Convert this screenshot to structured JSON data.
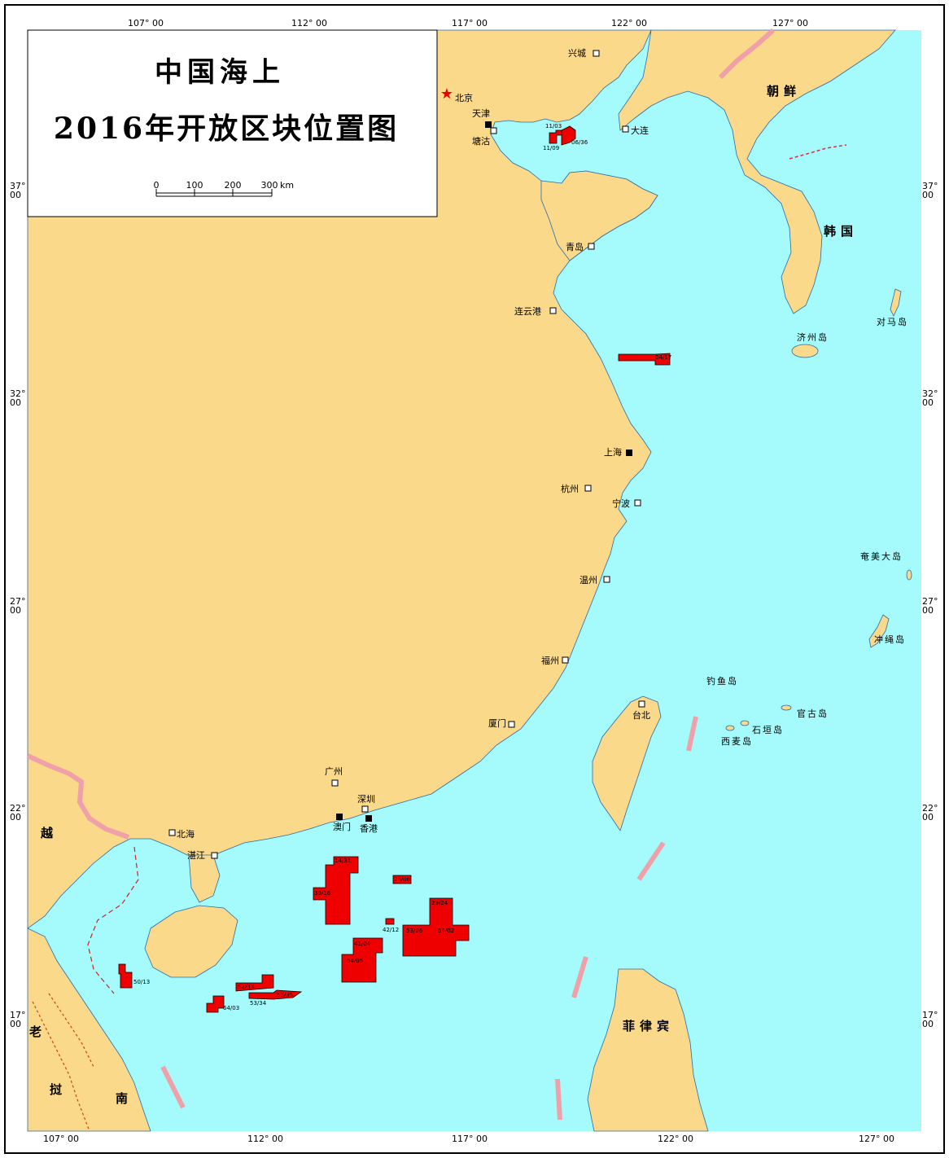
{
  "title": {
    "line1": "中国海上",
    "line2": "2016年开放区块位置图"
  },
  "scale_bar": {
    "ticks": [
      "0",
      "100",
      "200",
      "300"
    ],
    "unit": "km"
  },
  "longitude_labels_top": [
    "107° 00",
    "112° 00",
    "117° 00",
    "122° 00",
    "127° 00"
  ],
  "longitude_labels_bottom": [
    "107° 00",
    "112° 00",
    "117° 00",
    "122° 00",
    "127° 00"
  ],
  "latitude_labels": [
    {
      "deg": "37°",
      "min": "00"
    },
    {
      "deg": "32°",
      "min": "00"
    },
    {
      "deg": "27°",
      "min": "00"
    },
    {
      "deg": "22°",
      "min": "00"
    },
    {
      "deg": "17°",
      "min": "00"
    }
  ],
  "capital": "北京",
  "cities": [
    "天津",
    "塘沽",
    "兴城",
    "大连",
    "青岛",
    "连云港",
    "上海",
    "杭州",
    "宁波",
    "温州",
    "福州",
    "厦门",
    "台北",
    "广州",
    "深圳",
    "澳门",
    "香港",
    "北海",
    "湛江"
  ],
  "countries": {
    "north_korea": "朝鲜",
    "south_korea": "韩国",
    "vietnam": "越",
    "laos_1": "老",
    "laos_2": "挝",
    "vietnam_south": "南",
    "philippines": "菲律宾"
  },
  "islands": [
    "对马岛",
    "济州岛",
    "奄美大岛",
    "冲绳岛",
    "钓鱼岛",
    "官古岛",
    "石垣岛",
    "西麦岛"
  ],
  "blocks": [
    "11/03",
    "11/09",
    "06/36",
    "04/17",
    "14/31",
    "28/08",
    "39/16",
    "42/12",
    "29/24",
    "41/04",
    "53/06",
    "54/02",
    "54/05",
    "50/13",
    "52/33",
    "53/34",
    "53/35",
    "64/03"
  ],
  "colors": {
    "sea": "#a5fbfb",
    "land": "#fad98a",
    "block": "#ee0000",
    "border": "#f0a0a8",
    "frame": "#000000"
  }
}
